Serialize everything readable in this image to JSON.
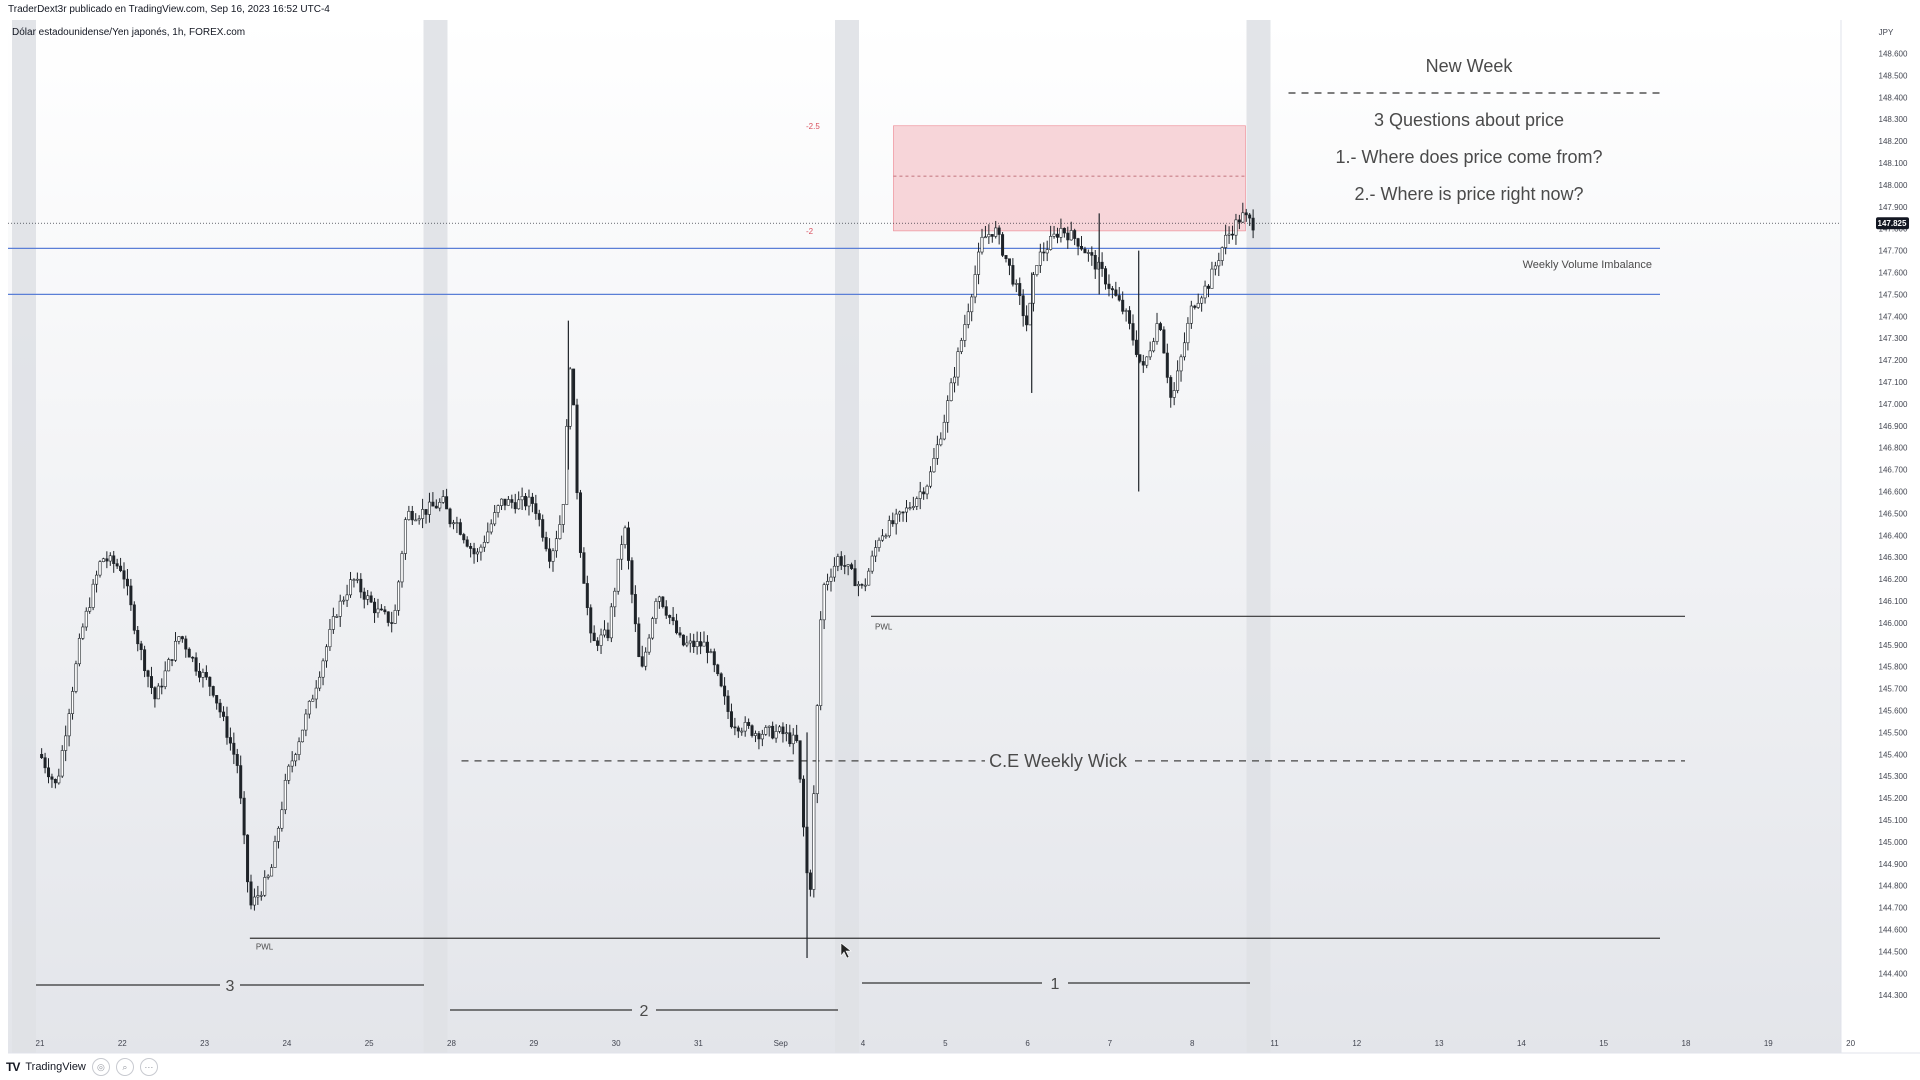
{
  "header": {
    "publisher_line": "TraderDext3r publicado en TradingView.com, Sep 16, 2023 16:52 UTC-4",
    "symbol_line": "Dólar estadounidense/Yen japonés, 1h, FOREX.com"
  },
  "footer": {
    "brand": "TradingView"
  },
  "colors": {
    "candle": "#1e2328",
    "blue_level": "#5b7fd6",
    "zone_fill": "#f6c9ce",
    "zone_border": "#e85c6a",
    "weekend_band": "#dfe1e5"
  },
  "chart_data": {
    "type": "candlestick",
    "currency": "JPY",
    "ylim": [
      144.2,
      148.7
    ],
    "y_ticks": [
      "148.600",
      "148.500",
      "148.400",
      "148.300",
      "148.200",
      "148.100",
      "148.000",
      "147.900",
      "147.800",
      "147.700",
      "147.600",
      "147.500",
      "147.400",
      "147.300",
      "147.200",
      "147.100",
      "147.000",
      "146.900",
      "146.800",
      "146.700",
      "146.600",
      "146.500",
      "146.400",
      "146.300",
      "146.200",
      "146.100",
      "146.000",
      "145.900",
      "145.800",
      "145.700",
      "145.600",
      "145.500",
      "145.400",
      "145.300",
      "145.200",
      "145.100",
      "145.000",
      "144.900",
      "144.800",
      "144.700",
      "144.600",
      "144.500",
      "144.400",
      "144.300"
    ],
    "x_ticks": [
      {
        "label": "21",
        "day": 0
      },
      {
        "label": "22",
        "day": 1
      },
      {
        "label": "23",
        "day": 2
      },
      {
        "label": "24",
        "day": 3
      },
      {
        "label": "25",
        "day": 4
      },
      {
        "label": "28",
        "day": 5
      },
      {
        "label": "29",
        "day": 6
      },
      {
        "label": "30",
        "day": 7
      },
      {
        "label": "31",
        "day": 8
      },
      {
        "label": "Sep",
        "day": 9
      },
      {
        "label": "4",
        "day": 10
      },
      {
        "label": "5",
        "day": 11
      },
      {
        "label": "6",
        "day": 12
      },
      {
        "label": "7",
        "day": 13
      },
      {
        "label": "8",
        "day": 14
      },
      {
        "label": "11",
        "day": 15
      },
      {
        "label": "12",
        "day": 16
      },
      {
        "label": "13",
        "day": 17
      },
      {
        "label": "14",
        "day": 18
      },
      {
        "label": "15",
        "day": 19
      },
      {
        "label": "18",
        "day": 20
      },
      {
        "label": "19",
        "day": 21
      },
      {
        "label": "20",
        "day": 22
      }
    ],
    "weekend_gaps_day": [
      0.0,
      5.0,
      10.0,
      15.0
    ],
    "last_price": "147.825",
    "price_path": [
      [
        0.0,
        145.4
      ],
      [
        0.2,
        145.25
      ],
      [
        0.5,
        145.95
      ],
      [
        0.75,
        146.3
      ],
      [
        1.0,
        146.25
      ],
      [
        1.2,
        145.9
      ],
      [
        1.4,
        145.65
      ],
      [
        1.7,
        145.95
      ],
      [
        1.9,
        145.8
      ],
      [
        2.1,
        145.7
      ],
      [
        2.4,
        145.35
      ],
      [
        2.55,
        144.7
      ],
      [
        2.8,
        144.85
      ],
      [
        3.0,
        145.3
      ],
      [
        3.3,
        145.65
      ],
      [
        3.6,
        146.05
      ],
      [
        3.8,
        146.2
      ],
      [
        4.1,
        146.05
      ],
      [
        4.3,
        146.0
      ],
      [
        4.45,
        146.5
      ],
      [
        4.6,
        146.5
      ],
      [
        4.9,
        146.55
      ],
      [
        5.0,
        146.45
      ],
      [
        5.0,
        146.5
      ],
      [
        5.3,
        146.3
      ],
      [
        5.6,
        146.55
      ],
      [
        6.0,
        146.55
      ],
      [
        6.2,
        146.3
      ],
      [
        6.35,
        146.5
      ],
      [
        6.45,
        147.25
      ],
      [
        6.55,
        146.4
      ],
      [
        6.7,
        145.9
      ],
      [
        6.9,
        145.95
      ],
      [
        7.1,
        146.45
      ],
      [
        7.3,
        145.75
      ],
      [
        7.5,
        146.15
      ],
      [
        7.8,
        145.9
      ],
      [
        8.1,
        145.9
      ],
      [
        8.4,
        145.55
      ],
      [
        8.7,
        145.5
      ],
      [
        9.0,
        145.5
      ],
      [
        9.2,
        145.45
      ],
      [
        9.35,
        144.7
      ],
      [
        9.5,
        146.15
      ],
      [
        9.7,
        146.3
      ],
      [
        10.0,
        146.15
      ],
      [
        10.0,
        146.15
      ],
      [
        10.2,
        146.4
      ],
      [
        10.5,
        146.5
      ],
      [
        10.8,
        146.65
      ],
      [
        11.0,
        146.95
      ],
      [
        11.2,
        147.3
      ],
      [
        11.45,
        147.75
      ],
      [
        11.6,
        147.8
      ],
      [
        11.8,
        147.6
      ],
      [
        12.0,
        147.35
      ],
      [
        12.1,
        147.65
      ],
      [
        12.4,
        147.8
      ],
      [
        12.6,
        147.75
      ],
      [
        12.9,
        147.6
      ],
      [
        13.2,
        147.4
      ],
      [
        13.4,
        147.15
      ],
      [
        13.6,
        147.4
      ],
      [
        13.75,
        147.0
      ],
      [
        14.0,
        147.45
      ],
      [
        14.2,
        147.55
      ],
      [
        14.4,
        147.75
      ],
      [
        14.6,
        147.86
      ],
      [
        14.75,
        147.82
      ]
    ],
    "candle_wicks": [
      {
        "day": 6.42,
        "high": 147.38,
        "low": 146.7
      },
      {
        "day": 9.32,
        "high": 145.5,
        "low": 144.47
      },
      {
        "day": 13.35,
        "high": 147.7,
        "low": 146.6
      },
      {
        "day": 12.05,
        "high": 147.6,
        "low": 147.05
      },
      {
        "day": 12.87,
        "high": 147.87,
        "low": 147.5
      }
    ],
    "annotations": {
      "new_week": "New Week",
      "q_title": "3 Questions about price",
      "q1": "1.- Where does price come from?",
      "q2": "2.- Where is price right now?",
      "weekly_volume_imbalance": "Weekly Volume Imbalance",
      "ce_weekly_wick": "C.E Weekly Wick",
      "pwl": "PWL",
      "fib_upper": "-2.5",
      "fib_lower": "-2",
      "week_labels": [
        "3",
        "2",
        "1"
      ],
      "zone_upper_price": 148.27,
      "zone_lower_price": 147.79,
      "zone_mid_price": 148.04,
      "wvi_upper_price": 147.71,
      "wvi_lower_price": 147.5,
      "ce_price": 145.37,
      "pwl_high_price": 146.03,
      "pwl_low_price": 144.56
    }
  }
}
